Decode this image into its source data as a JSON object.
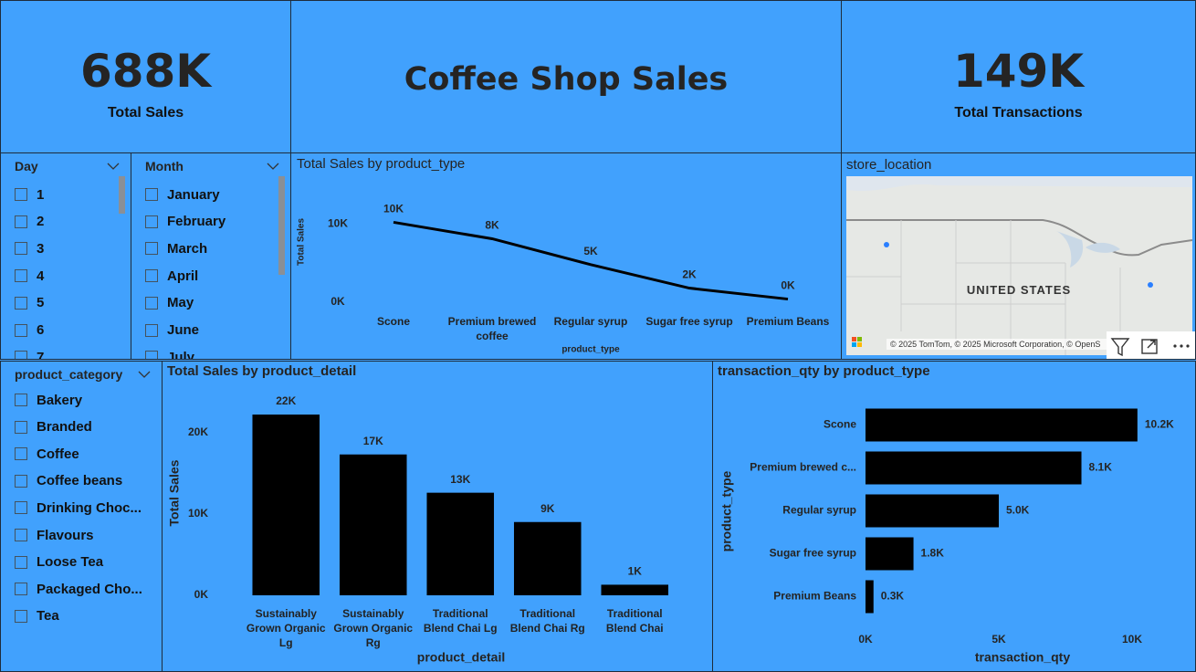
{
  "header": {
    "title": "Coffee Shop Sales"
  },
  "cards": [
    {
      "value": "688K",
      "label": "Total Sales"
    },
    {
      "value": "149K",
      "label": "Total Transactions"
    }
  ],
  "slicers": [
    {
      "title": "Day",
      "items": [
        "1",
        "2",
        "3",
        "4",
        "5",
        "6",
        "7"
      ]
    },
    {
      "title": "Month",
      "items": [
        "January",
        "February",
        "March",
        "April",
        "May",
        "June",
        "July"
      ]
    },
    {
      "title": "product_category",
      "items": [
        "Bakery",
        "Branded",
        "Coffee",
        "Coffee beans",
        "Drinking Choc...",
        "Flavours",
        "Loose Tea",
        "Packaged Cho...",
        "Tea"
      ]
    }
  ],
  "map": {
    "title": "store_location",
    "country_label": "UNITED STATES",
    "attribution": "© 2025 TomTom, © 2025 Microsoft Corporation, © OpenS"
  },
  "chart_data": [
    {
      "type": "line",
      "title": "Total Sales by product_type",
      "x_label": "product_type",
      "y_label": "Total Sales",
      "categories": [
        "Scone",
        "Premium brewed coffee",
        "Regular syrup",
        "Sugar free syrup",
        "Premium Beans"
      ],
      "values": [
        10200,
        8100,
        4800,
        1800,
        400
      ],
      "value_labels": [
        "10K",
        "8K",
        "5K",
        "2K",
        "0K"
      ],
      "color": "#000000",
      "ylim": [
        0,
        12000
      ],
      "yticks": [
        {
          "value": 0,
          "label": "0K"
        },
        {
          "value": 10000,
          "label": "10K"
        }
      ],
      "grid": false
    },
    {
      "type": "bar",
      "orientation": "vertical",
      "title": "Total Sales by product_detail",
      "x_label": "product_detail",
      "y_label": "Total Sales",
      "categories": [
        "Sustainably Grown Organic Lg",
        "Sustainably Grown Organic Rg",
        "Traditional Blend Chai Lg",
        "Traditional Blend Chai Rg",
        "Traditional Blend Chai"
      ],
      "values": [
        22200,
        17300,
        12600,
        9000,
        1300
      ],
      "value_labels": [
        "22K",
        "17K",
        "13K",
        "9K",
        "1K"
      ],
      "color": "#000000",
      "ylim": [
        0,
        24000
      ],
      "yticks": [
        {
          "value": 0,
          "label": "0K"
        },
        {
          "value": 10000,
          "label": "10K"
        },
        {
          "value": 20000,
          "label": "20K"
        }
      ],
      "grid": false
    },
    {
      "type": "bar",
      "orientation": "horizontal",
      "title": "transaction_qty by product_type",
      "x_label": "transaction_qty",
      "y_label": "product_type",
      "categories": [
        "Scone",
        "Premium brewed c...",
        "Regular syrup",
        "Sugar free syrup",
        "Premium Beans"
      ],
      "values": [
        10200,
        8100,
        5000,
        1800,
        300
      ],
      "value_labels": [
        "10.2K",
        "8.1K",
        "5.0K",
        "1.8K",
        "0.3K"
      ],
      "color": "#000000",
      "xlim": [
        0,
        10500
      ],
      "xticks": [
        {
          "value": 0,
          "label": "0K"
        },
        {
          "value": 5000,
          "label": "5K"
        },
        {
          "value": 10000,
          "label": "10K"
        }
      ],
      "grid": false
    }
  ]
}
